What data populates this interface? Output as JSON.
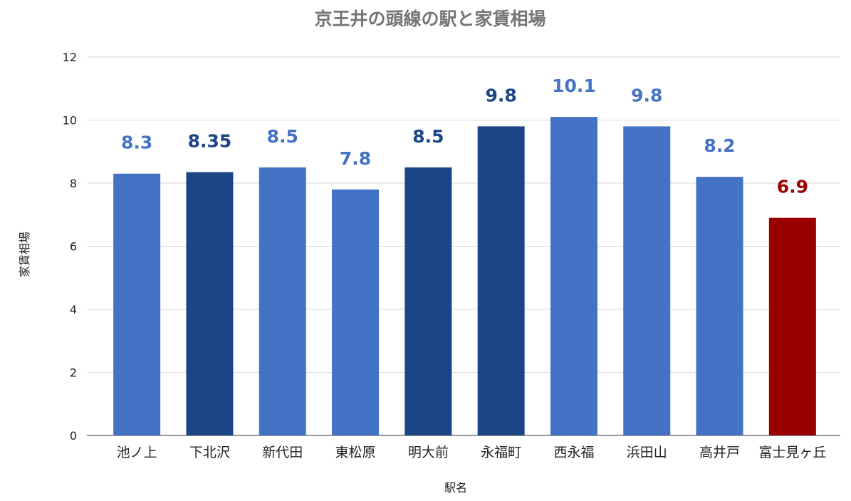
{
  "chart_data": {
    "type": "bar",
    "title": "京王井の頭線の駅と家賃相場",
    "xlabel": "駅名",
    "ylabel": "家賃相場",
    "ylim": [
      0,
      12
    ],
    "yticks": [
      0,
      2,
      4,
      6,
      8,
      10,
      12
    ],
    "grid": true,
    "categories": [
      "池ノ上",
      "下北沢",
      "新代田",
      "東松原",
      "明大前",
      "永福町",
      "西永福",
      "浜田山",
      "高井戸",
      "富士見ヶ丘"
    ],
    "values": [
      8.3,
      8.35,
      8.5,
      7.8,
      8.5,
      9.8,
      10.1,
      9.8,
      8.2,
      6.9
    ],
    "data_labels": [
      "8.3",
      "8.35",
      "8.5",
      "7.8",
      "8.5",
      "9.8",
      "10.1",
      "9.8",
      "8.2",
      "6.9"
    ],
    "bar_colors": [
      "#4472c4",
      "#1c4587",
      "#4472c4",
      "#4472c4",
      "#1c4587",
      "#1c4587",
      "#4472c4",
      "#4472c4",
      "#4472c4",
      "#990000"
    ]
  }
}
